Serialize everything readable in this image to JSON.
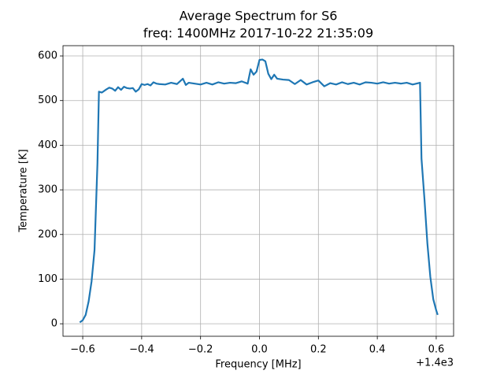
{
  "chart_data": {
    "type": "line",
    "title": "Average Spectrum for S6",
    "subtitle": "freq: 1400MHz 2017-10-22 21:35:09",
    "x_label": "Frequency [MHz]",
    "y_label": "Temperature [K]",
    "x_offset_label": "+1.4e3",
    "x": [
      1399.39,
      1399.4,
      1399.41,
      1399.42,
      1399.43,
      1399.44,
      1399.45,
      1399.455,
      1399.465,
      1399.48,
      1399.49,
      1399.5,
      1399.51,
      1399.52,
      1399.53,
      1399.54,
      1399.55,
      1399.56,
      1399.57,
      1399.58,
      1399.59,
      1399.6,
      1399.61,
      1399.62,
      1399.63,
      1399.64,
      1399.65,
      1399.66,
      1399.68,
      1399.7,
      1399.72,
      1399.74,
      1399.75,
      1399.76,
      1399.78,
      1399.8,
      1399.82,
      1399.84,
      1399.86,
      1399.88,
      1399.9,
      1399.92,
      1399.94,
      1399.96,
      1399.97,
      1399.98,
      1399.99,
      1400.0,
      1400.01,
      1400.02,
      1400.03,
      1400.04,
      1400.05,
      1400.06,
      1400.08,
      1400.1,
      1400.12,
      1400.14,
      1400.16,
      1400.18,
      1400.2,
      1400.22,
      1400.24,
      1400.26,
      1400.28,
      1400.3,
      1400.32,
      1400.34,
      1400.36,
      1400.38,
      1400.4,
      1400.42,
      1400.44,
      1400.46,
      1400.48,
      1400.5,
      1400.52,
      1400.545,
      1400.55,
      1400.56,
      1400.57,
      1400.58,
      1400.59,
      1400.6,
      1400.605
    ],
    "series": [
      {
        "name": "spectrum",
        "color": "#1f77b4",
        "values": [
          3,
          8,
          20,
          50,
          95,
          165,
          360,
          520,
          518,
          525,
          529,
          527,
          522,
          530,
          524,
          531,
          528,
          527,
          528,
          520,
          525,
          537,
          535,
          537,
          534,
          541,
          538,
          537,
          536,
          540,
          537,
          549,
          535,
          540,
          538,
          536,
          540,
          536,
          541,
          538,
          540,
          539,
          543,
          538,
          570,
          558,
          565,
          591,
          592,
          588,
          560,
          548,
          558,
          549,
          547,
          546,
          537,
          546,
          536,
          541,
          545,
          532,
          539,
          536,
          541,
          537,
          540,
          536,
          541,
          540,
          538,
          541,
          538,
          540,
          538,
          540,
          536,
          540,
          370,
          280,
          180,
          105,
          55,
          30,
          20
        ]
      }
    ],
    "xlim": [
      1399.333,
      1400.659
    ],
    "ylim": [
      -28,
      623
    ],
    "xticks": [
      {
        "value": 1399.4,
        "label": "−0.6"
      },
      {
        "value": 1399.6,
        "label": "−0.4"
      },
      {
        "value": 1399.8,
        "label": "−0.2"
      },
      {
        "value": 1400.0,
        "label": "0.0"
      },
      {
        "value": 1400.2,
        "label": "0.2"
      },
      {
        "value": 1400.4,
        "label": "0.4"
      },
      {
        "value": 1400.6,
        "label": "0.6"
      }
    ],
    "yticks": [
      0,
      100,
      200,
      300,
      400,
      500,
      600
    ],
    "grid": true
  }
}
